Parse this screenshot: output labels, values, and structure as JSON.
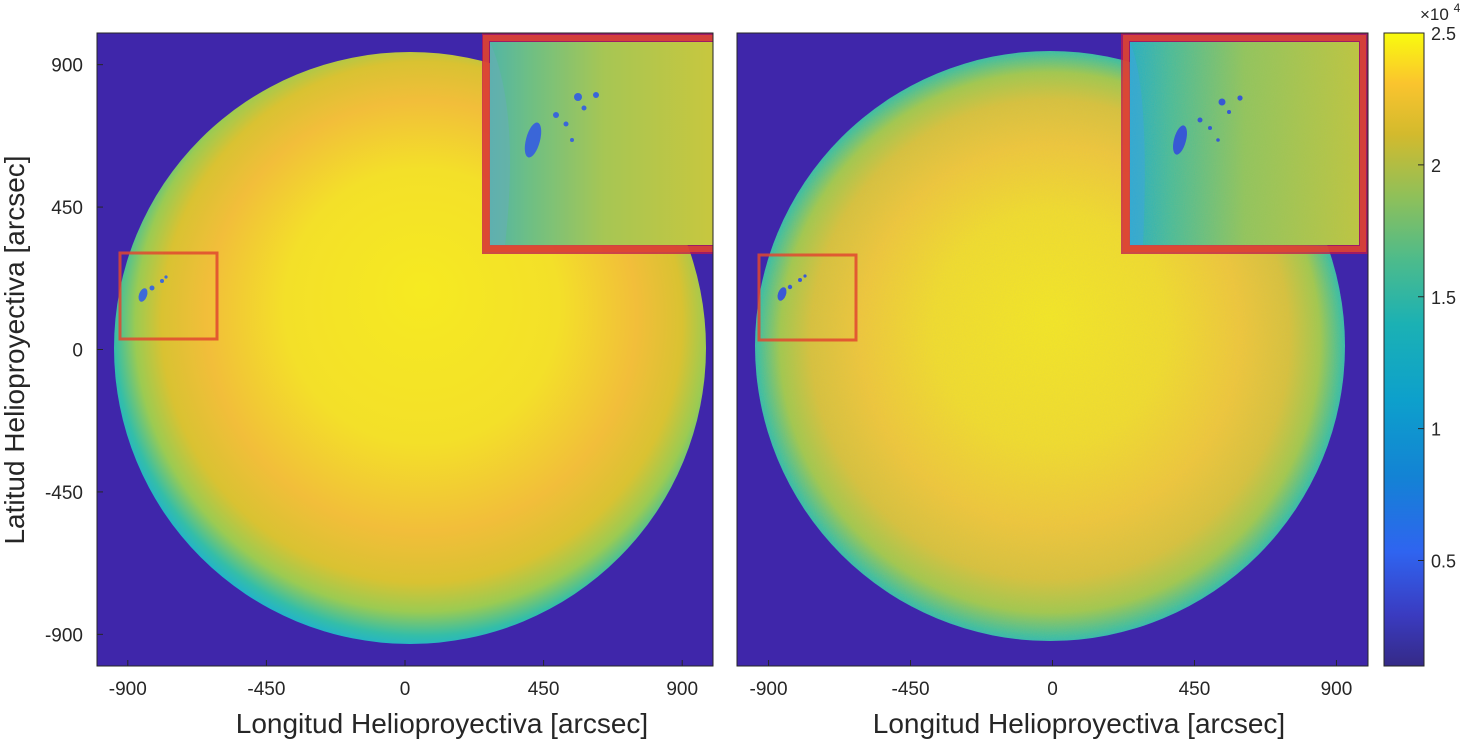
{
  "chart_data": [
    {
      "type": "heatmap",
      "title": "",
      "xlabel": "Longitud Helioproyectiva [arcsec]",
      "ylabel": "Latitud Helioproyectiva [arcsec]",
      "xlim": [
        -1000,
        1000
      ],
      "ylim": [
        -1000,
        1000
      ],
      "x_ticks": [
        -900,
        -450,
        0,
        450,
        900
      ],
      "x_tick_labels": [
        "-900",
        "-450",
        "0",
        "450",
        "900"
      ],
      "y_ticks": [
        900,
        450,
        0,
        -450,
        -900
      ],
      "y_tick_labels": [
        "900",
        "450",
        "0",
        "-450",
        "-900"
      ],
      "image": "solar full-disk continuum intensity, smooth limb darkening",
      "disk_center": [
        0,
        0
      ],
      "disk_radius": 950,
      "roi_box": {
        "x": [
          -950,
          -640
        ],
        "y": [
          45,
          330
        ]
      },
      "inset_box": {
        "x": [
          235,
          1000
        ],
        "y": [
          320,
          1000
        ]
      }
    },
    {
      "type": "heatmap",
      "title": "",
      "xlabel": "Longitud Helioproyectiva [arcsec]",
      "ylabel": "",
      "xlim": [
        -1000,
        1000
      ],
      "ylim": [
        -1000,
        1000
      ],
      "x_ticks": [
        -900,
        -450,
        0,
        450,
        900
      ],
      "x_tick_labels": [
        "-900",
        "-450",
        "0",
        "450",
        "900"
      ],
      "image": "solar full-disk continuum intensity, processed (granulation visible)",
      "disk_center": [
        0,
        0
      ],
      "disk_radius": 950,
      "roi_box": {
        "x": [
          -950,
          -640
        ],
        "y": [
          45,
          325
        ]
      },
      "inset_box": {
        "x": [
          235,
          1000
        ],
        "y": [
          320,
          1000
        ]
      }
    }
  ],
  "colorbar": {
    "ticks": [
      2.5,
      2,
      1.5,
      1,
      0.5
    ],
    "tick_labels": [
      "2.5",
      "2",
      "1.5",
      "1",
      "0.5"
    ],
    "range": [
      0.1,
      2.5
    ],
    "multiplier_base": "×10",
    "multiplier_exp": "4",
    "colormap": "parula"
  },
  "colors": {
    "background": "#3F26AA",
    "limb": "#4E6FF8",
    "disk_edge": "#13B2C8",
    "disk_mid": "#B7C73A",
    "disk_center": "#F5E823",
    "roi_stroke": "#E0482F",
    "inset_frame": "#C0184E"
  }
}
